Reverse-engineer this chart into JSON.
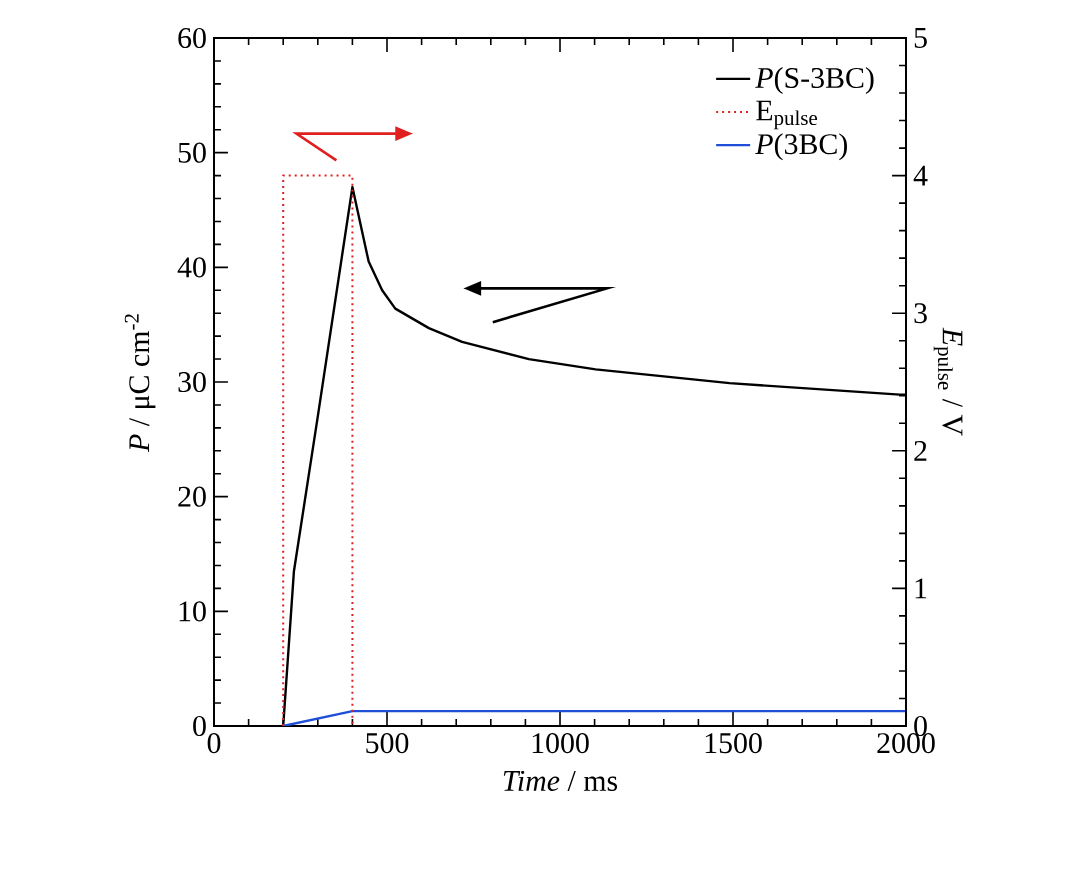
{
  "chart_data": {
    "type": "line",
    "xlabel": "*Time* / ms",
    "ylabel": "*P* / μC cm$^{-2}$",
    "y2label": "*E*$_{pulse}$ / V",
    "xlim": [
      0,
      2000
    ],
    "xticks": [
      0,
      500,
      1000,
      1500,
      2000
    ],
    "ylim": [
      0,
      60
    ],
    "yticks": [
      0,
      10,
      20,
      30,
      40,
      50,
      60
    ],
    "y2lim": [
      0,
      5
    ],
    "y2ticks": [
      0,
      1,
      2,
      3,
      4,
      5
    ],
    "legend": "top right",
    "grid": false,
    "marker": "none",
    "series": [
      {
        "name": "*P*(S-3BC)",
        "color": "#000000",
        "line_style": "solid",
        "x": [
          200,
          231,
          300,
          400,
          447,
          486,
          524,
          621,
          717,
          910,
          1103,
          1490,
          1982,
          2000
        ],
        "values": [
          0,
          13.5,
          27,
          47,
          40.5,
          38,
          36.4,
          34.7,
          33.5,
          32,
          31.1,
          29.9,
          28.9,
          28.9
        ]
      },
      {
        "name": "E$_{pulse}$",
        "color": "#e02020",
        "line_style": "dotted",
        "axis": "y2",
        "x": [
          200,
          200,
          400,
          400
        ],
        "values": [
          0,
          4,
          4,
          0
        ]
      },
      {
        "name": "*P*(3BC)",
        "color": "#1f4fd8",
        "line_style": "solid",
        "x": [
          200,
          400,
          2000
        ],
        "values": [
          0,
          1.3,
          1.3
        ]
      }
    ]
  }
}
